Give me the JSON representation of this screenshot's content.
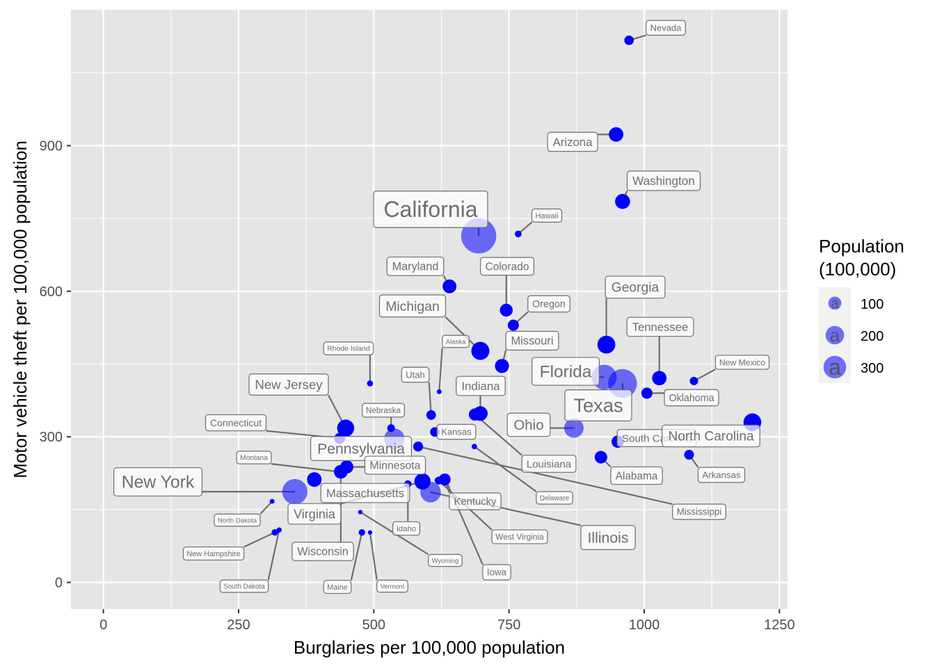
{
  "chart_data": {
    "type": "scatter",
    "title": "",
    "xlabel": "Burglaries per 100,000 population",
    "ylabel": "Motor vehicle theft per 100,000 population",
    "xlim": [
      -60,
      1265
    ],
    "ylim": [
      -55,
      1180
    ],
    "x_ticks": [
      0,
      250,
      500,
      750,
      1000,
      1250
    ],
    "x_tick_labels": [
      "0",
      "250",
      "500",
      "750",
      "1000",
      "1250"
    ],
    "y_ticks": [
      0,
      300,
      600,
      900
    ],
    "y_tick_labels": [
      "0",
      "300",
      "600",
      "900"
    ],
    "grid": true,
    "point_color": "#0000ff",
    "panel_background": "#e5e5e5",
    "legend": {
      "title": "Population\n(100,000)",
      "title_lines": [
        "Population",
        "(100,000)"
      ],
      "position": "right",
      "entries": [
        {
          "label": "100",
          "value": 100
        },
        {
          "label": "200",
          "value": 200
        },
        {
          "label": "300",
          "value": 300
        }
      ]
    },
    "points": [
      {
        "state": "Nevada",
        "x": 972,
        "y": 1117,
        "pop": 27
      },
      {
        "state": "Arizona",
        "x": 948,
        "y": 923,
        "pop": 64
      },
      {
        "state": "Washington",
        "x": 960,
        "y": 785,
        "pop": 68
      },
      {
        "state": "California",
        "x": 694,
        "y": 714,
        "pop": 373
      },
      {
        "state": "Hawaii",
        "x": 767,
        "y": 718,
        "pop": 14
      },
      {
        "state": "Maryland",
        "x": 640,
        "y": 610,
        "pop": 58
      },
      {
        "state": "Colorado",
        "x": 745,
        "y": 561,
        "pop": 50
      },
      {
        "state": "Oregon",
        "x": 758,
        "y": 530,
        "pop": 38
      },
      {
        "state": "Michigan",
        "x": 697,
        "y": 477,
        "pop": 99
      },
      {
        "state": "Missouri",
        "x": 737,
        "y": 446,
        "pop": 60
      },
      {
        "state": "Georgia",
        "x": 930,
        "y": 490,
        "pop": 97
      },
      {
        "state": "Tennessee",
        "x": 1028,
        "y": 421,
        "pop": 63
      },
      {
        "state": "Alaska",
        "x": 621,
        "y": 393,
        "pop": 7
      },
      {
        "state": "Rhode Island",
        "x": 493,
        "y": 410,
        "pop": 11
      },
      {
        "state": "New Mexico",
        "x": 1092,
        "y": 415,
        "pop": 21
      },
      {
        "state": "Florida",
        "x": 926,
        "y": 423,
        "pop": 188
      },
      {
        "state": "Texas",
        "x": 960,
        "y": 410,
        "pop": 251
      },
      {
        "state": "Oklahoma",
        "x": 1005,
        "y": 390,
        "pop": 38
      },
      {
        "state": "New Jersey",
        "x": 448,
        "y": 318,
        "pop": 88
      },
      {
        "state": "Utah",
        "x": 606,
        "y": 345,
        "pop": 28
      },
      {
        "state": "Indiana",
        "x": 697,
        "y": 348,
        "pop": 65
      },
      {
        "state": "Nebraska",
        "x": 532,
        "y": 318,
        "pop": 18
      },
      {
        "state": "Kansas",
        "x": 613,
        "y": 310,
        "pop": 28
      },
      {
        "state": "Ohio",
        "x": 870,
        "y": 318,
        "pop": 115
      },
      {
        "state": "Connecticut",
        "x": 437,
        "y": 297,
        "pop": 36
      },
      {
        "state": "Pennsylvania",
        "x": 538,
        "y": 296,
        "pop": 127
      },
      {
        "state": "Delaware",
        "x": 686,
        "y": 280,
        "pop": 9
      },
      {
        "state": "South Carolina",
        "x": 951,
        "y": 290,
        "pop": 46
      },
      {
        "state": "North Carolina",
        "x": 1200,
        "y": 330,
        "pop": 95
      },
      {
        "state": "Minnesota",
        "x": 450,
        "y": 238,
        "pop": 53
      },
      {
        "state": "Louisiana",
        "x": 687,
        "y": 346,
        "pop": 45
      },
      {
        "state": "Arkansas",
        "x": 1083,
        "y": 263,
        "pop": 29
      },
      {
        "state": "Alabama",
        "x": 920,
        "y": 258,
        "pop": 48
      },
      {
        "state": "Montana",
        "x": 437,
        "y": 228,
        "pop": 10
      },
      {
        "state": "Massachusetts",
        "x": 390,
        "y": 212,
        "pop": 65
      },
      {
        "state": "New York",
        "x": 354,
        "y": 187,
        "pop": 194
      },
      {
        "state": "Idaho",
        "x": 563,
        "y": 203,
        "pop": 16
      },
      {
        "state": "Kentucky",
        "x": 631,
        "y": 212,
        "pop": 43
      },
      {
        "state": "West Virginia",
        "x": 620,
        "y": 210,
        "pop": 19
      },
      {
        "state": "Mississippi",
        "x": 582,
        "y": 280,
        "pop": 30
      },
      {
        "state": "Illinois",
        "x": 605,
        "y": 186,
        "pop": 128
      },
      {
        "state": "North Dakota",
        "x": 312,
        "y": 167,
        "pop": 7
      },
      {
        "state": "Virginia",
        "x": 590,
        "y": 208,
        "pop": 80
      },
      {
        "state": "Wyoming",
        "x": 475,
        "y": 145,
        "pop": 6
      },
      {
        "state": "New Hampshire",
        "x": 317,
        "y": 103,
        "pop": 13
      },
      {
        "state": "Wisconsin",
        "x": 439,
        "y": 228,
        "pop": 57
      },
      {
        "state": "South Dakota",
        "x": 325,
        "y": 108,
        "pop": 8
      },
      {
        "state": "Maine",
        "x": 478,
        "y": 103,
        "pop": 13
      },
      {
        "state": "Vermont",
        "x": 493,
        "y": 103,
        "pop": 6
      },
      {
        "state": "Iowa",
        "x": 632,
        "y": 214,
        "pop": 30
      }
    ]
  }
}
